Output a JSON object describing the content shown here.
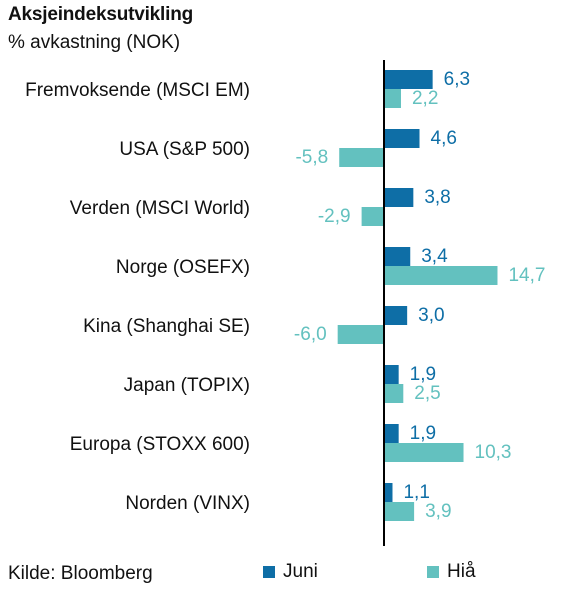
{
  "header": {
    "title": "Aksjeindeksutvikling",
    "subtitle": "% avkastning (NOK)"
  },
  "footer": {
    "source": "Kilde: Bloomberg"
  },
  "legend": {
    "juni_label": "Juni",
    "hia_label": "Hiå"
  },
  "colors": {
    "juni": "#0e6ea6",
    "hia": "#63c1bf",
    "axis": "#000000"
  },
  "chart_data": {
    "type": "bar",
    "orientation": "horizontal",
    "categories": [
      "Fremvoksende (MSCI EM)",
      "USA (S&P 500)",
      "Verden (MSCI World)",
      "Norge (OSEFX)",
      "Kina (Shanghai SE)",
      "Japan (TOPIX)",
      "Europa (STOXX 600)",
      "Norden (VINX)"
    ],
    "series": [
      {
        "name": "Juni",
        "values": [
          6.3,
          4.6,
          3.8,
          3.4,
          3.0,
          1.9,
          1.9,
          1.1
        ]
      },
      {
        "name": "Hiå",
        "values": [
          2.2,
          -5.8,
          -2.9,
          14.7,
          -6.0,
          2.5,
          10.3,
          3.9
        ]
      }
    ],
    "value_labels": [
      [
        "6,3",
        "4,6",
        "3,8",
        "3,4",
        "3,0",
        "1,9",
        "1,9",
        "1,1"
      ],
      [
        "2,2",
        "-5,8",
        "-2,9",
        "14,7",
        "-6,0",
        "2,5",
        "10,3",
        "3,9"
      ]
    ],
    "title": "Aksjeindeksutvikling",
    "subtitle": "% avkastning (NOK)",
    "legend_position": "bottom",
    "grid": false
  }
}
